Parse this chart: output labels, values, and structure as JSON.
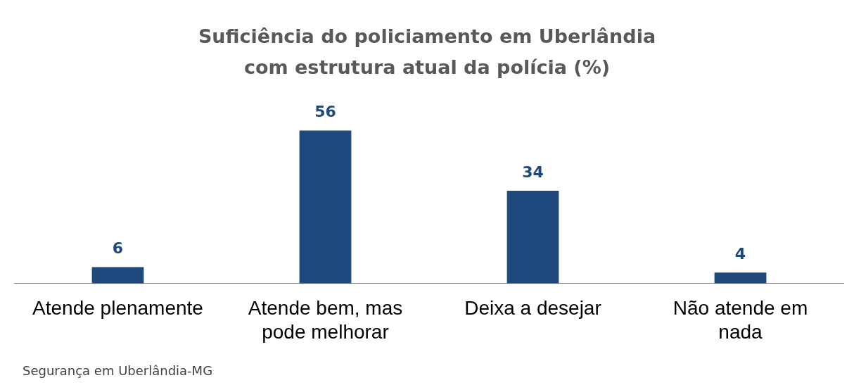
{
  "chart_data": {
    "type": "bar",
    "title": "Suficiência do policiamento em Uberlândia com estrutura atual da polícia (%)",
    "categories": [
      "Atende plenamente",
      "Atende bem, mas pode melhorar",
      "Deixa a desejar",
      "Não atende em nada"
    ],
    "values": [
      6,
      56,
      34,
      4
    ],
    "color": "#1f497d",
    "data_labels": true,
    "grid": false,
    "legend": false,
    "annotations": [
      "Segurança em Uberlândia-MG"
    ]
  }
}
